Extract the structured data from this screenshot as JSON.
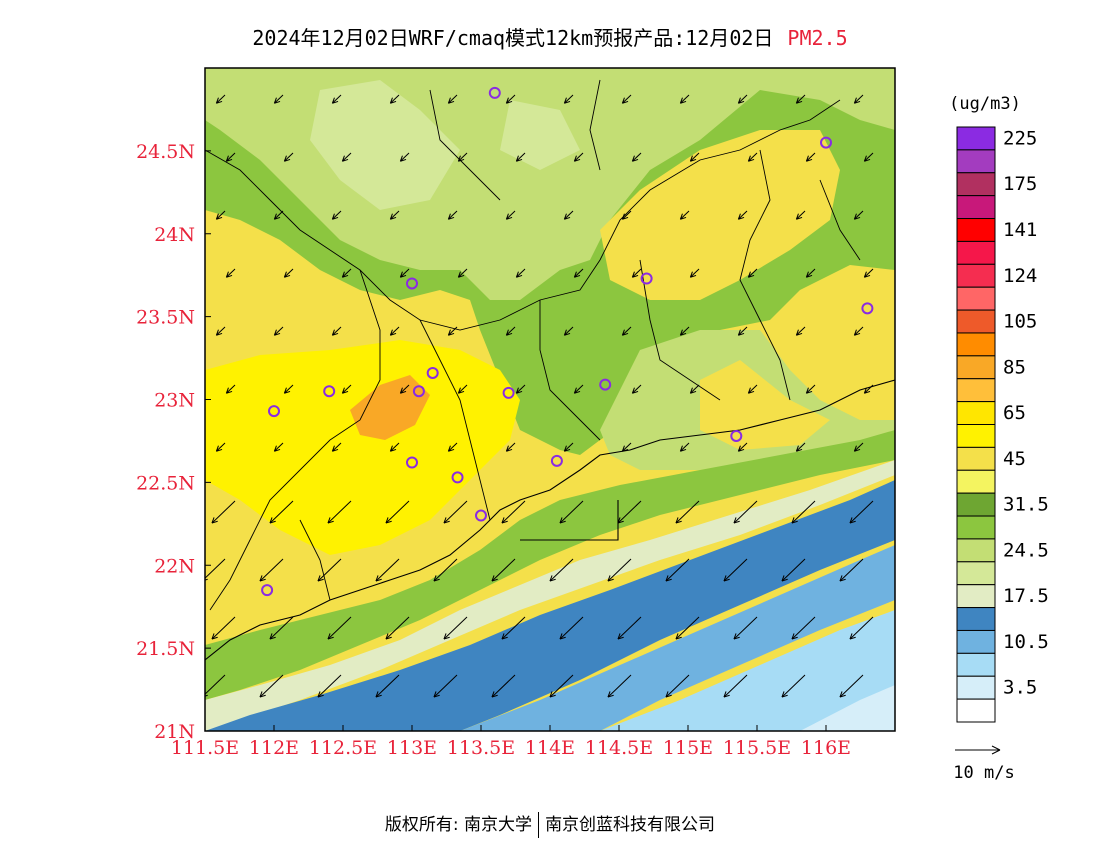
{
  "title": {
    "text": "2024年12月02日WRF/cmaq模式12km预报产品:12月02日",
    "pollutant": "PM2.5",
    "pollutant_color": "#e8233a"
  },
  "map": {
    "lon_range": [
      111.5,
      116.5
    ],
    "lat_range": [
      21.0,
      25.0
    ],
    "lon_ticks": [
      "111.5E",
      "112E",
      "112.5E",
      "113E",
      "113.5E",
      "114E",
      "114.5E",
      "115E",
      "115.5E",
      "116E"
    ],
    "lat_ticks": [
      "21N",
      "21.5N",
      "22N",
      "22.5N",
      "23N",
      "23.5N",
      "24N",
      "24.5N"
    ],
    "tick_label_color": "#e8233a",
    "station_color": "#8a2be2",
    "wind_direction": "from north-east"
  },
  "legend": {
    "unit": "(ug/m3)",
    "bands": [
      {
        "color": "#8b2be2",
        "label": "225"
      },
      {
        "color": "#a33cbf",
        "label": ""
      },
      {
        "color": "#b13060",
        "label": "175"
      },
      {
        "color": "#c8187a",
        "label": ""
      },
      {
        "color": "#ff0000",
        "label": "141"
      },
      {
        "color": "#f5174a",
        "label": ""
      },
      {
        "color": "#f52d50",
        "label": "124"
      },
      {
        "color": "#ff6666",
        "label": ""
      },
      {
        "color": "#ee5a2a",
        "label": "105"
      },
      {
        "color": "#ff8c00",
        "label": ""
      },
      {
        "color": "#f9a826",
        "label": "85"
      },
      {
        "color": "#ffbf3a",
        "label": ""
      },
      {
        "color": "#ffe600",
        "label": "65"
      },
      {
        "color": "#fff200",
        "label": ""
      },
      {
        "color": "#f4e04a",
        "label": "45"
      },
      {
        "color": "#f4f460",
        "label": ""
      },
      {
        "color": "#6ea632",
        "label": "31.5"
      },
      {
        "color": "#8cc63f",
        "label": ""
      },
      {
        "color": "#c3de74",
        "label": "24.5"
      },
      {
        "color": "#d4e898",
        "label": ""
      },
      {
        "color": "#e2ecc4",
        "label": "17.5"
      },
      {
        "color": "#3f85c1",
        "label": ""
      },
      {
        "color": "#6fb2e0",
        "label": "10.5"
      },
      {
        "color": "#a7dcf5",
        "label": ""
      },
      {
        "color": "#d6eef9",
        "label": "3.5"
      },
      {
        "color": "#ffffff",
        "label": ""
      }
    ],
    "wind_scale_label": "10 m/s"
  },
  "footer": {
    "copyright": "版权所有: 南京大学",
    "company": "南京创蓝科技有限公司"
  }
}
